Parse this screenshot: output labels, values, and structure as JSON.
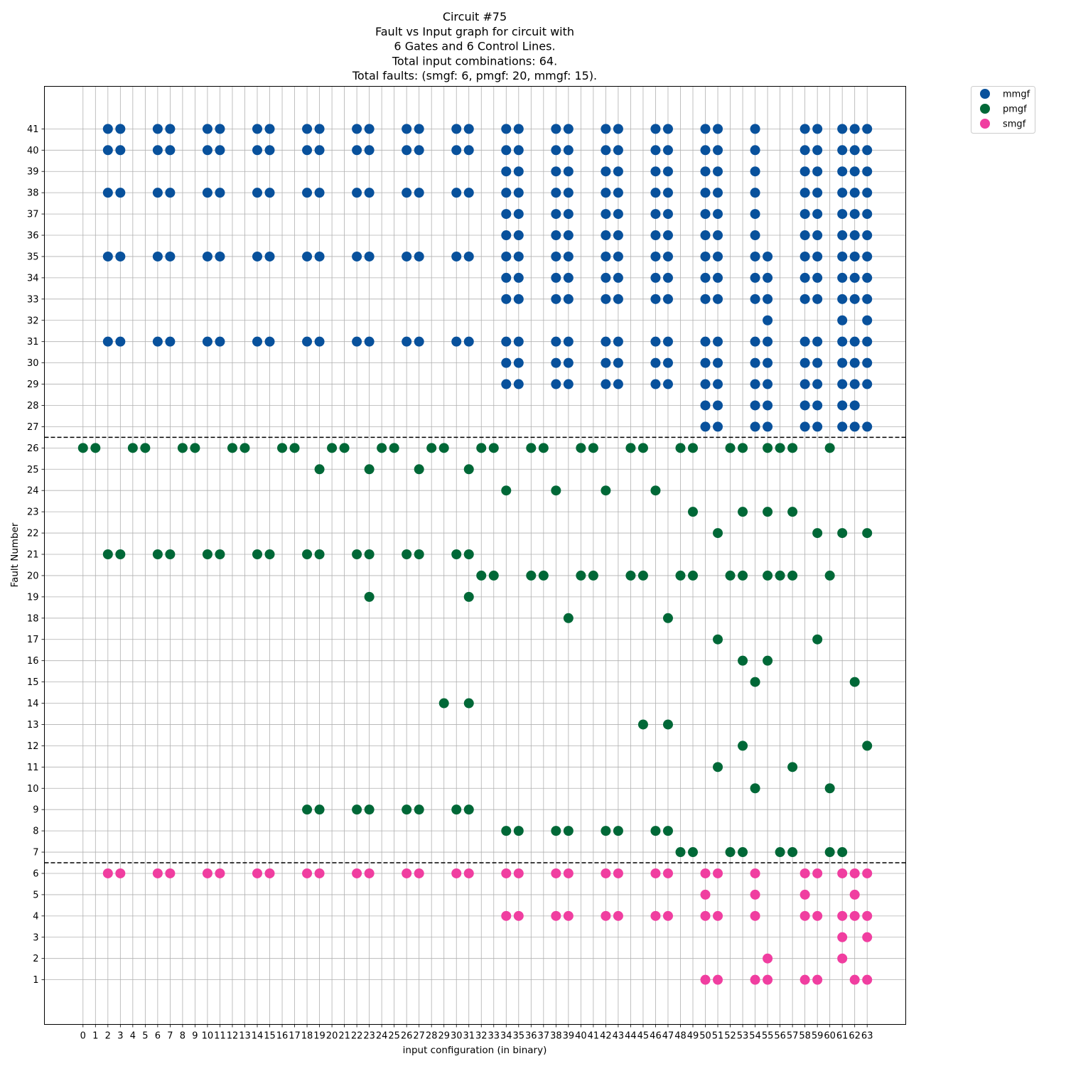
{
  "chart_data": {
    "type": "scatter",
    "title": [
      "Circuit #75",
      "Fault vs Input graph for circuit with",
      "6 Gates and 6 Control Lines.",
      "Total input combinations: 64.",
      "Total faults: (smgf: 6, pmgf: 20, mmgf: 15)."
    ],
    "xlabel": "input configuration (in binary)",
    "ylabel": "Fault Number",
    "x_ticks": [
      0,
      1,
      2,
      3,
      4,
      5,
      6,
      7,
      8,
      9,
      10,
      11,
      12,
      13,
      14,
      15,
      16,
      17,
      18,
      19,
      20,
      21,
      22,
      23,
      24,
      25,
      26,
      27,
      28,
      29,
      30,
      31,
      32,
      33,
      34,
      35,
      36,
      37,
      38,
      39,
      40,
      41,
      42,
      43,
      44,
      45,
      46,
      47,
      48,
      49,
      50,
      51,
      52,
      53,
      54,
      55,
      56,
      57,
      58,
      59,
      60,
      61,
      62,
      63
    ],
    "y_ticks": [
      1,
      2,
      3,
      4,
      5,
      6,
      7,
      8,
      9,
      10,
      11,
      12,
      13,
      14,
      15,
      16,
      17,
      18,
      19,
      20,
      21,
      22,
      23,
      24,
      25,
      26,
      27,
      28,
      29,
      30,
      31,
      32,
      33,
      34,
      35,
      36,
      37,
      38,
      39,
      40,
      41
    ],
    "xlim": [
      -3.1,
      66.1
    ],
    "ylim": [
      -1.1,
      43
    ],
    "grid": true,
    "separator_lines": [
      6.5,
      26.5
    ],
    "legend_placement": "outside-top-right",
    "series": [
      {
        "name": "mmgf",
        "color": "#08519c",
        "columns": {
          "2": [
            31,
            35,
            38,
            40,
            41
          ],
          "3": [
            31,
            35,
            38,
            40,
            41
          ],
          "6": [
            31,
            35,
            38,
            40,
            41
          ],
          "7": [
            31,
            35,
            38,
            40,
            41
          ],
          "10": [
            31,
            35,
            38,
            40,
            41
          ],
          "11": [
            31,
            35,
            38,
            40,
            41
          ],
          "14": [
            31,
            35,
            38,
            40,
            41
          ],
          "15": [
            31,
            35,
            38,
            40,
            41
          ],
          "18": [
            31,
            35,
            38,
            40,
            41
          ],
          "19": [
            31,
            35,
            38,
            40,
            41
          ],
          "22": [
            31,
            35,
            38,
            40,
            41
          ],
          "23": [
            31,
            35,
            38,
            40,
            41
          ],
          "26": [
            31,
            35,
            38,
            40,
            41
          ],
          "27": [
            31,
            35,
            38,
            40,
            41
          ],
          "30": [
            31,
            35,
            38,
            40,
            41
          ],
          "31": [
            31,
            35,
            38,
            40,
            41
          ],
          "34": [
            29,
            30,
            31,
            33,
            34,
            35,
            36,
            37,
            38,
            39,
            40,
            41
          ],
          "35": [
            29,
            30,
            31,
            33,
            34,
            35,
            36,
            37,
            38,
            39,
            40,
            41
          ],
          "38": [
            29,
            30,
            31,
            33,
            34,
            35,
            36,
            37,
            38,
            39,
            40,
            41
          ],
          "39": [
            29,
            30,
            31,
            33,
            34,
            35,
            36,
            37,
            38,
            39,
            40,
            41
          ],
          "42": [
            29,
            30,
            31,
            33,
            34,
            35,
            36,
            37,
            38,
            39,
            40,
            41
          ],
          "43": [
            29,
            30,
            31,
            33,
            34,
            35,
            36,
            37,
            38,
            39,
            40,
            41
          ],
          "46": [
            29,
            30,
            31,
            33,
            34,
            35,
            36,
            37,
            38,
            39,
            40,
            41
          ],
          "47": [
            29,
            30,
            31,
            33,
            34,
            35,
            36,
            37,
            38,
            39,
            40,
            41
          ],
          "50": [
            27,
            28,
            29,
            30,
            31,
            33,
            34,
            35,
            36,
            37,
            38,
            39,
            40,
            41
          ],
          "51": [
            27,
            28,
            29,
            30,
            31,
            33,
            34,
            35,
            36,
            37,
            38,
            39,
            40,
            41
          ],
          "54": [
            27,
            28,
            29,
            30,
            31,
            33,
            34,
            35,
            36,
            37,
            38,
            39,
            40,
            41
          ],
          "55": [
            27,
            28,
            29,
            30,
            31,
            32,
            33,
            34,
            35
          ],
          "58": [
            27,
            28,
            29,
            30,
            31,
            33,
            34,
            35,
            36,
            37,
            38,
            39,
            40,
            41
          ],
          "59": [
            27,
            28,
            29,
            30,
            31,
            33,
            34,
            35,
            36,
            37,
            38,
            39,
            40,
            41
          ],
          "61": [
            27,
            28,
            29,
            30,
            31,
            32,
            33,
            34,
            35,
            36,
            37,
            38,
            39,
            40,
            41
          ],
          "62": [
            27,
            28,
            29,
            30,
            31,
            33,
            34,
            35,
            36,
            37,
            38,
            39,
            40,
            41
          ],
          "63": [
            27,
            29,
            30,
            31,
            32,
            33,
            34,
            35,
            36,
            37,
            38,
            39,
            40,
            41
          ]
        }
      },
      {
        "name": "pmgf",
        "color": "#006837",
        "columns": {
          "0": [
            26
          ],
          "1": [
            26
          ],
          "2": [
            21
          ],
          "3": [
            21
          ],
          "4": [
            26
          ],
          "5": [
            26
          ],
          "6": [
            21
          ],
          "7": [
            21
          ],
          "8": [
            26
          ],
          "9": [
            26
          ],
          "10": [
            21
          ],
          "11": [
            21
          ],
          "12": [
            26
          ],
          "13": [
            26
          ],
          "14": [
            21
          ],
          "15": [
            21
          ],
          "16": [
            26
          ],
          "17": [
            26
          ],
          "18": [
            9,
            21
          ],
          "19": [
            9,
            21,
            25
          ],
          "20": [
            26
          ],
          "21": [
            26
          ],
          "22": [
            9,
            21
          ],
          "23": [
            9,
            19,
            21,
            25
          ],
          "24": [
            26
          ],
          "25": [
            26
          ],
          "26": [
            9,
            21
          ],
          "27": [
            9,
            21,
            25
          ],
          "28": [
            26
          ],
          "29": [
            14,
            26
          ],
          "30": [
            9,
            21
          ],
          "31": [
            9,
            14,
            19,
            21,
            25
          ],
          "32": [
            20,
            26
          ],
          "33": [
            20,
            26
          ],
          "34": [
            8,
            24
          ],
          "35": [
            8
          ],
          "36": [
            20,
            26
          ],
          "37": [
            20,
            26
          ],
          "38": [
            8,
            24
          ],
          "39": [
            8,
            18
          ],
          "40": [
            20,
            26
          ],
          "41": [
            20,
            26
          ],
          "42": [
            8,
            24
          ],
          "43": [
            8
          ],
          "44": [
            20,
            26
          ],
          "45": [
            13,
            20,
            26
          ],
          "46": [
            8,
            24
          ],
          "47": [
            8,
            13,
            18
          ],
          "48": [
            7,
            20,
            26
          ],
          "49": [
            7,
            20,
            23,
            26
          ],
          "51": [
            11,
            17,
            22
          ],
          "52": [
            7,
            20,
            26
          ],
          "53": [
            7,
            12,
            16,
            20,
            23,
            26
          ],
          "54": [
            10,
            15
          ],
          "55": [
            16,
            20,
            23,
            26
          ],
          "56": [
            7,
            20,
            26
          ],
          "57": [
            7,
            11,
            20,
            23,
            26
          ],
          "59": [
            17,
            22
          ],
          "60": [
            7,
            10,
            20,
            26
          ],
          "61": [
            7,
            22
          ],
          "62": [
            15
          ],
          "63": [
            12,
            22
          ]
        }
      },
      {
        "name": "smgf",
        "color": "#f03ea0",
        "columns": {
          "2": [
            6
          ],
          "3": [
            6
          ],
          "6": [
            6
          ],
          "7": [
            6
          ],
          "10": [
            6
          ],
          "11": [
            6
          ],
          "14": [
            6
          ],
          "15": [
            6
          ],
          "18": [
            6
          ],
          "19": [
            6
          ],
          "22": [
            6
          ],
          "23": [
            6
          ],
          "26": [
            6
          ],
          "27": [
            6
          ],
          "30": [
            6
          ],
          "31": [
            6
          ],
          "34": [
            4,
            6
          ],
          "35": [
            4,
            6
          ],
          "38": [
            4,
            6
          ],
          "39": [
            4,
            6
          ],
          "42": [
            4,
            6
          ],
          "43": [
            4,
            6
          ],
          "46": [
            4,
            6
          ],
          "47": [
            4,
            6
          ],
          "50": [
            1,
            4,
            5,
            6
          ],
          "51": [
            1,
            4,
            6
          ],
          "54": [
            1,
            4,
            5,
            6
          ],
          "55": [
            1,
            2
          ],
          "58": [
            1,
            4,
            5,
            6
          ],
          "59": [
            1,
            4,
            6
          ],
          "61": [
            2,
            3,
            4,
            6
          ],
          "62": [
            1,
            4,
            5,
            6
          ],
          "63": [
            1,
            3,
            4,
            6
          ]
        }
      }
    ]
  }
}
